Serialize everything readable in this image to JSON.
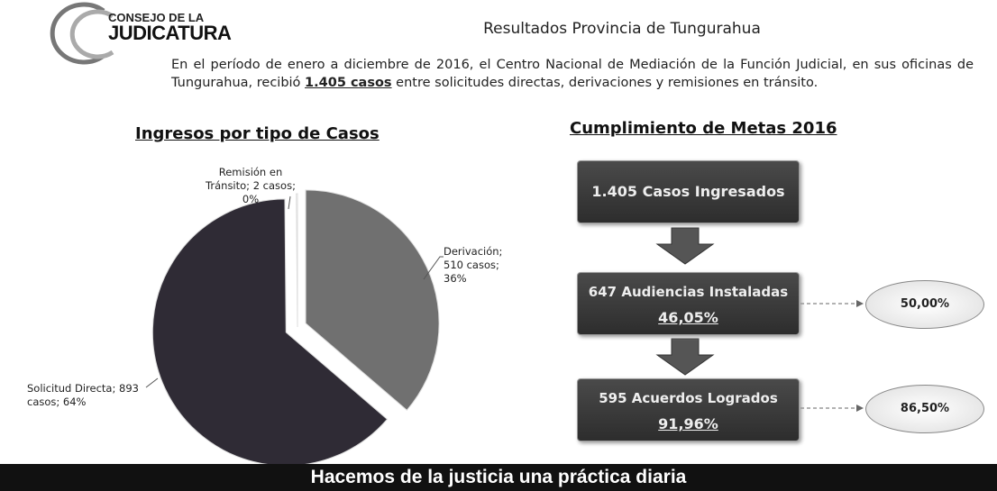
{
  "header": {
    "logo_line1": "CONSEJO DE LA",
    "logo_line2": "JUDICATURA",
    "title": "Resultados Provincia de Tungurahua"
  },
  "intro": {
    "before": "En el período de enero a diciembre de 2016, el Centro Nacional de Mediación de la Función Judicial, en sus oficinas de Tungurahua, recibió ",
    "highlight": "1.405 casos",
    "after": " entre solicitudes directas, derivaciones y remisiones en tránsito."
  },
  "chart_data": {
    "type": "pie",
    "title": "Ingresos por tipo de Casos",
    "labels": [
      "Derivación; 510 casos; 36%",
      "Solicitud Directa; 893 casos; 64%",
      "Remisión en Tránsito; 2 casos; 0%"
    ],
    "values": [
      510,
      893,
      2
    ],
    "colors": [
      "#707070",
      "#2f2b35",
      "#ffffff"
    ]
  },
  "goals": {
    "title": "Cumplimiento de Metas 2016",
    "boxes": [
      {
        "label": "1.405 Casos Ingresados"
      },
      {
        "label": "647 Audiencias Instaladas",
        "percent": "46,05%",
        "target": "50,00%"
      },
      {
        "label": "595 Acuerdos Logrados",
        "percent": "91,96%",
        "target": "86,50%"
      }
    ]
  },
  "footer": {
    "text": "Hacemos de la justicia una práctica diaria"
  }
}
